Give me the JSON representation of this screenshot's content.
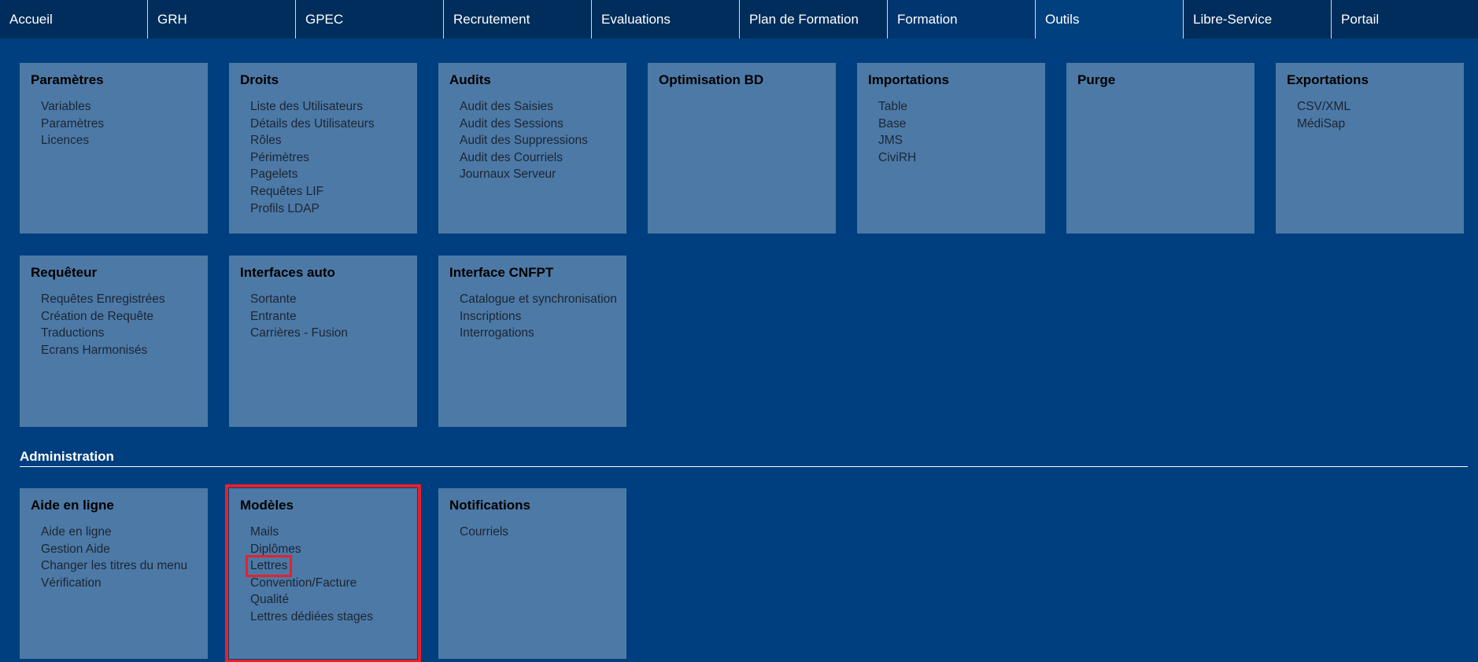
{
  "nav": [
    "Accueil",
    "GRH",
    "GPEC",
    "Recrutement",
    "Evaluations",
    "Plan de Formation",
    "Formation",
    "Outils",
    "Libre-Service",
    "Portail"
  ],
  "nav_active": "Outils",
  "colors": {
    "nav_bg": "#002d5b",
    "page_bg": "#003f7f",
    "card_bg": "#4d79a6",
    "highlight": "#e8202a"
  },
  "row1": [
    {
      "title": "Paramètres",
      "items": [
        "Variables",
        "Paramètres",
        "Licences"
      ]
    },
    {
      "title": "Droits",
      "items": [
        "Liste des Utilisateurs",
        "Détails des Utilisateurs",
        "Rôles",
        "Périmètres",
        "Pagelets",
        "Requêtes LIF",
        "Profils LDAP"
      ]
    },
    {
      "title": "Audits",
      "items": [
        "Audit des Saisies",
        "Audit des Sessions",
        "Audit des Suppressions",
        "Audit des Courriels",
        "Journaux Serveur"
      ]
    },
    {
      "title": "Optimisation BD",
      "items": []
    },
    {
      "title": "Importations",
      "items": [
        "Table",
        "Base",
        "JMS",
        "CiviRH"
      ]
    },
    {
      "title": "Purge",
      "items": []
    },
    {
      "title": "Exportations",
      "items": [
        "CSV/XML",
        "MédiSap"
      ]
    }
  ],
  "row2": [
    {
      "title": "Requêteur",
      "items": [
        "Requêtes Enregistrées",
        "Création de Requête",
        "Traductions",
        "Ecrans Harmonisés"
      ]
    },
    {
      "title": "Interfaces auto",
      "items": [
        "Sortante",
        "Entrante",
        "Carrières - Fusion"
      ]
    },
    {
      "title": "Interface CNFPT",
      "items": [
        "Catalogue et synchronisation",
        "Inscriptions",
        "Interrogations"
      ]
    }
  ],
  "section_title": "Administration",
  "row3": [
    {
      "title": "Aide en ligne",
      "items": [
        "Aide en ligne",
        "Gestion Aide",
        "Changer les titres du menu",
        "Vérification"
      ]
    },
    {
      "title": "Modèles",
      "items": [
        "Mails",
        "Diplômes",
        "Lettres",
        "Convention/Facture",
        "Qualité",
        "Lettres dédiées stages"
      ],
      "highlighted": true,
      "highlighted_item": "Lettres"
    },
    {
      "title": "Notifications",
      "items": [
        "Courriels"
      ]
    }
  ]
}
